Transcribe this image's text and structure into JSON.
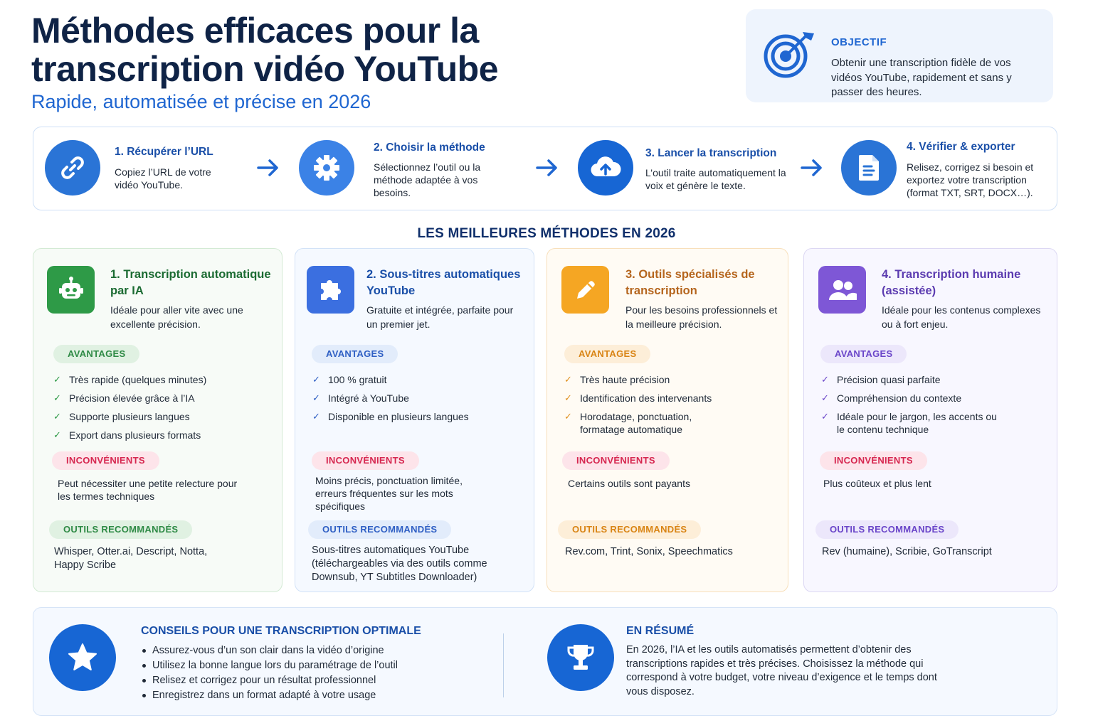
{
  "header": {
    "title": "Méthodes efficaces pour la transcription vidéo YouTube",
    "subtitle": "Rapide, automatisée et précise en 2026"
  },
  "objective": {
    "label": "OBJECTIF",
    "text": "Obtenir une transcription fidèle de vos vidéos YouTube, rapidement et sans y passer des heures.",
    "icon": "target-icon"
  },
  "steps": [
    {
      "title": "1. Récupérer l’URL",
      "desc": "Copiez l’URL de votre vidéo YouTube.",
      "icon": "link-icon"
    },
    {
      "title": "2. Choisir la méthode",
      "desc": "Sélectionnez l’outil ou la méthode adaptée à vos besoins.",
      "icon": "gear-icon"
    },
    {
      "title": "3. Lancer la transcription",
      "desc": "L’outil traite automatiquement la voix et génère le texte.",
      "icon": "cloud-upload-icon"
    },
    {
      "title": "4. Vérifier & exporter",
      "desc": "Relisez, corrigez si besoin et exportez votre transcription (format TXT, SRT, DOCX…).",
      "icon": "document-icon"
    }
  ],
  "section_title": "LES MEILLEURES MÉTHODES EN 2026",
  "labels": {
    "advantages": "AVANTAGES",
    "drawbacks": "INCONVÉNIENTS",
    "tools": "OUTILS RECOMMANDÉS"
  },
  "methods": [
    {
      "title": "1. Transcription automatique par IA",
      "desc": "Idéale pour aller vite avec une excellente précision.",
      "icon": "robot-icon",
      "advantages": [
        "Très rapide (quelques minutes)",
        "Précision élevée grâce à l’IA",
        "Supporte plusieurs langues",
        "Export dans plusieurs formats"
      ],
      "drawbacks": "Peut nécessiter une petite relecture pour les termes techniques",
      "tools": "Whisper, Otter.ai, Descript, Notta, Happy Scribe",
      "color": "#2e9a47"
    },
    {
      "title": "2. Sous-titres automatiques YouTube",
      "desc": "Gratuite et intégrée, parfaite pour un premier jet.",
      "icon": "puzzle-icon",
      "advantages": [
        "100 % gratuit",
        "Intégré à YouTube",
        "Disponible en plusieurs langues"
      ],
      "drawbacks": "Moins précis, ponctuation limitée, erreurs fréquentes sur les mots spécifiques",
      "tools": "Sous-titres automatiques YouTube (téléchargeables via des outils comme Downsub, YT Subtitles Downloader)",
      "color": "#3b6fe0"
    },
    {
      "title": "3. Outils spécialisés de transcription",
      "desc": "Pour les besoins professionnels et la meilleure précision.",
      "icon": "pencil-icon",
      "advantages": [
        "Très haute précision",
        "Identification des intervenants",
        "Horodatage, ponctuation, formatage automatique"
      ],
      "drawbacks": "Certains outils sont payants",
      "tools": "Rev.com, Trint, Sonix, Speechmatics",
      "color": "#f5a623"
    },
    {
      "title": "4. Transcription humaine (assistée)",
      "desc": "Idéale pour les contenus complexes ou à fort enjeu.",
      "icon": "people-icon",
      "advantages": [
        "Précision quasi parfaite",
        "Compréhension du contexte",
        "Idéale pour le jargon, les accents ou le contenu technique"
      ],
      "drawbacks": "Plus coûteux et plus lent",
      "tools": "Rev (humaine), Scribie, GoTranscript",
      "color": "#7e57d6"
    }
  ],
  "tips": {
    "title": "CONSEILS POUR UNE TRANSCRIPTION OPTIMALE",
    "icon": "star-icon",
    "items": [
      "Assurez-vous d’un son clair dans la vidéo d’origine",
      "Utilisez la bonne langue lors du paramétrage de l’outil",
      "Relisez et corrigez pour un résultat professionnel",
      "Enregistrez dans un format adapté à votre usage"
    ]
  },
  "summary": {
    "title": "EN RÉSUMÉ",
    "icon": "trophy-icon",
    "text": "En 2026, l’IA et les outils automatisés permettent d’obtenir des transcriptions rapides et très précises. Choisissez la méthode qui correspond à votre budget, votre niveau d’exigence et le temps dont vous disposez."
  }
}
